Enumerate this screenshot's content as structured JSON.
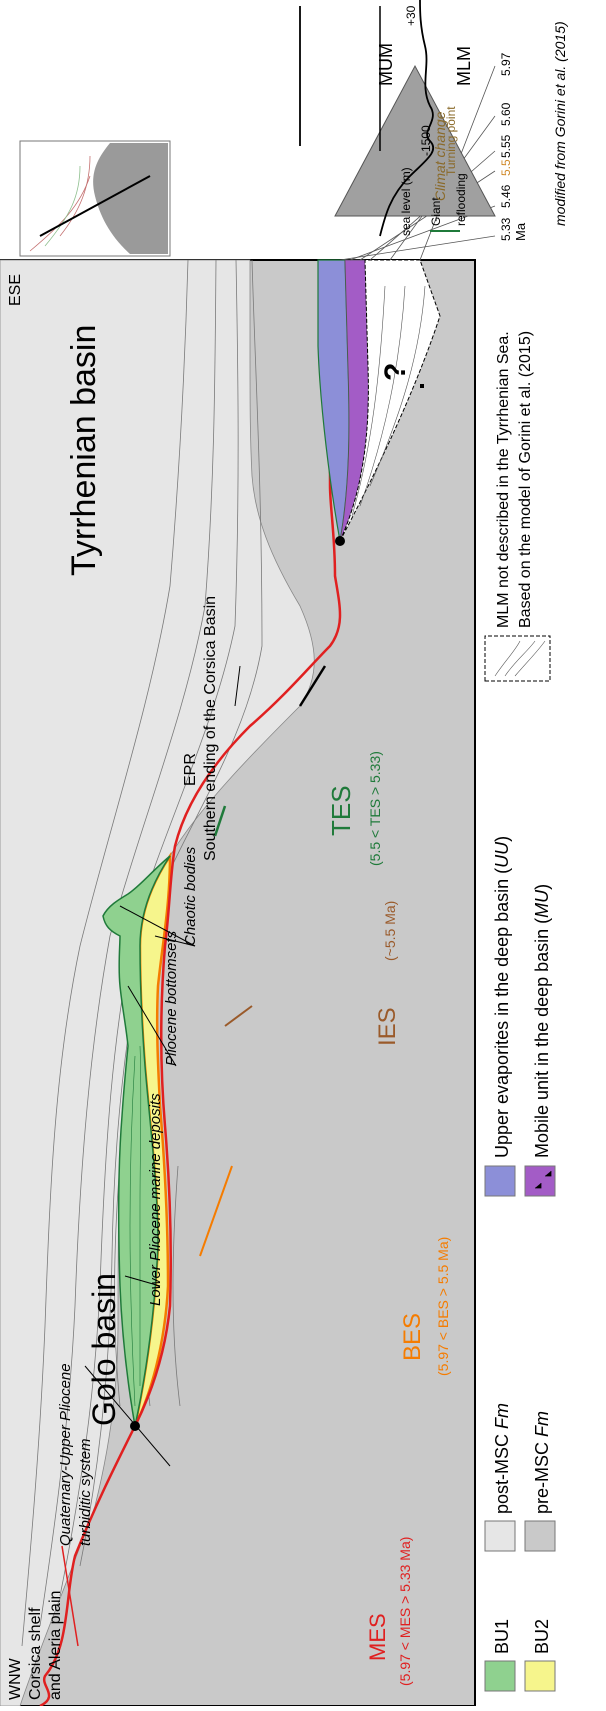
{
  "orientation": "rotated-90-ccw",
  "directions": {
    "west": "WNW",
    "east": "ESE"
  },
  "locations": {
    "corsica": [
      "Corsica shelf",
      "and Aleria plain"
    ],
    "golo": "Golo basin",
    "tyrrhenian": "Tyrrhenian basin",
    "epr": "EPR",
    "corsica_basin": "Southern ending of the Corsica Basin"
  },
  "annotations": {
    "quaternary": [
      "Quaternary-Upper Pliocene",
      "turbiditic system"
    ],
    "lower_pliocene": "Lower Pliocene marine deposits",
    "pliocene_bottomsets": "Pliocene bottomsets",
    "chaotic": "Chaotic bodies",
    "question_mark": "?"
  },
  "surfaces": {
    "mes": {
      "label": "MES",
      "range": "(5.97 < MES > 5.33 Ma)",
      "color": "#e02020"
    },
    "bes": {
      "label": "BES",
      "range": "(5.97 < BES > 5.5 Ma)",
      "color": "#f57c00"
    },
    "ies": {
      "label": "IES",
      "range": "(~5.5 Ma)",
      "color": "#9a5a2a"
    },
    "tes": {
      "label": "TES",
      "range": "(5.5 < TES > 5.33)",
      "color": "#1f7a3a"
    }
  },
  "legend": {
    "bu1": {
      "label": "BU1",
      "color": "#8fd18f"
    },
    "bu2": {
      "label": "BU2",
      "color": "#f6f58c"
    },
    "post_msc": {
      "label": "post-MSC",
      "suffix": "Fm",
      "color": "#e6e6e6"
    },
    "pre_msc": {
      "label": "pre-MSC",
      "suffix": "Fm",
      "color": "#c9c9c9"
    },
    "uu": {
      "label": "Upper evaporites in the deep basin (",
      "code": "UU",
      "close": ")",
      "color": "#8c8fd8"
    },
    "mu": {
      "label": "Mobile unit in the deep basin (",
      "code": "MU",
      "close": ")",
      "color": "#a35cc6"
    },
    "mlm_note": [
      "MLM not described in the Tyrrhenian Sea.",
      "Based on the model of Gorini et al. (2015)"
    ]
  },
  "inset": {
    "ma_label": "Ma",
    "ages": [
      "5.33",
      "5.46",
      "5.5",
      "5.55",
      "5.60",
      "5.97"
    ],
    "sea_level": "sea level (m)",
    "sea_plus": "+30",
    "sea_minus": "-1500",
    "giant": "Giant",
    "reflooding": "reflooding",
    "climat_change": "Climat change",
    "turning_point": "Turning point",
    "mum": "MUM",
    "mlm": "MLM",
    "credit": "modified from Gorini et al. (2015)"
  }
}
